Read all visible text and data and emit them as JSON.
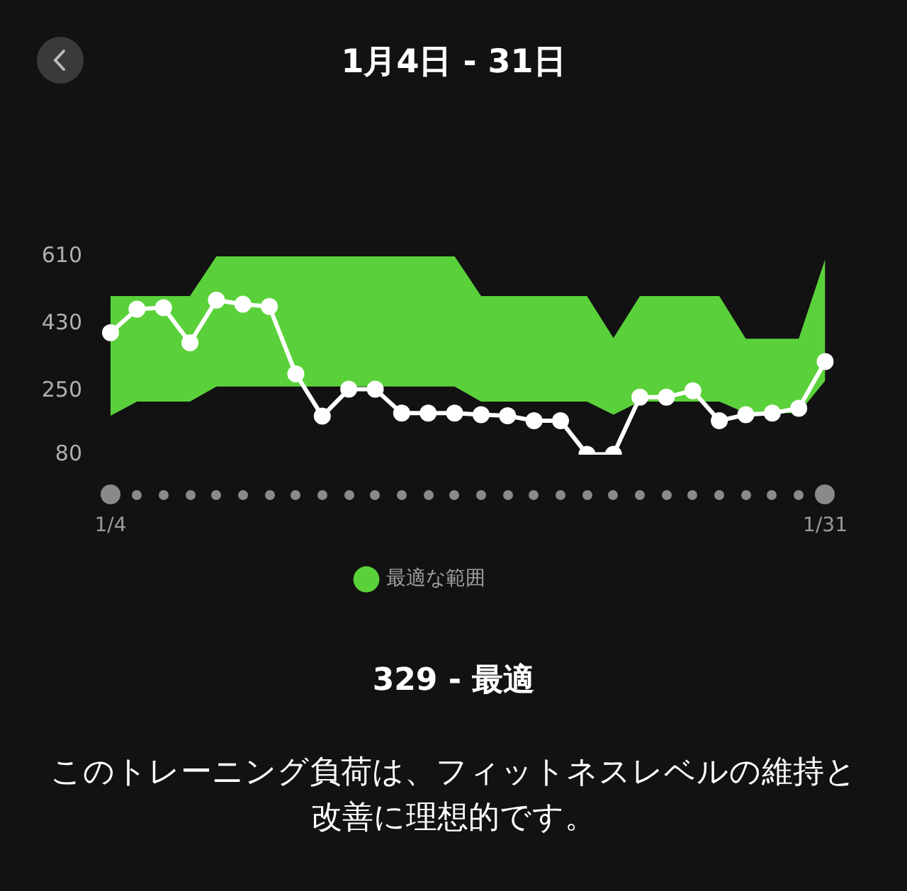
{
  "chart_data": {
    "type": "line",
    "title": "1月4日 - 31日",
    "categories": [
      "1/4",
      null,
      null,
      null,
      null,
      null,
      null,
      null,
      null,
      null,
      null,
      null,
      null,
      null,
      null,
      null,
      null,
      null,
      null,
      null,
      null,
      null,
      null,
      null,
      null,
      null,
      null,
      "1/31"
    ],
    "series": [
      {
        "type": "line",
        "color": "#ffffff",
        "marker": "circle",
        "values": [
          406,
          469,
          473,
          379,
          493,
          482,
          476,
          296,
          183,
          255,
          255,
          191,
          191,
          191,
          187,
          184,
          171,
          171,
          81,
          81,
          234,
          234,
          251,
          171,
          187,
          191,
          204,
          329
        ],
        "lower": [
          184,
          222,
          222,
          222,
          262,
          262,
          262,
          262,
          262,
          262,
          262,
          262,
          262,
          262,
          222,
          222,
          222,
          222,
          222,
          187,
          222,
          222,
          222,
          222,
          191,
          191,
          191,
          278
        ],
        "upper": [
          504,
          504,
          504,
          504,
          610,
          610,
          610,
          610,
          610,
          610,
          610,
          610,
          610,
          610,
          504,
          504,
          504,
          504,
          504,
          392,
          504,
          504,
          504,
          504,
          390,
          390,
          390,
          603
        ]
      },
      {
        "name": "最適な範囲",
        "type": "area",
        "color": "#5ad13a",
        "values": [
          null,
          null,
          null,
          null,
          null,
          null,
          null,
          null,
          null,
          null,
          null,
          null,
          null,
          null,
          null,
          null,
          null,
          null,
          null,
          null,
          null,
          null,
          null,
          null,
          null,
          null,
          null,
          null
        ]
      }
    ],
    "ylim": [
      80,
      610
    ],
    "yticks": [
      610,
      430,
      250,
      80
    ],
    "grid": false,
    "legend": "bottom",
    "annotations": [
      "329 - 最適",
      "このトレーニング負荷は、フィットネスレベルの維持と改善に理想的です。"
    ]
  }
}
